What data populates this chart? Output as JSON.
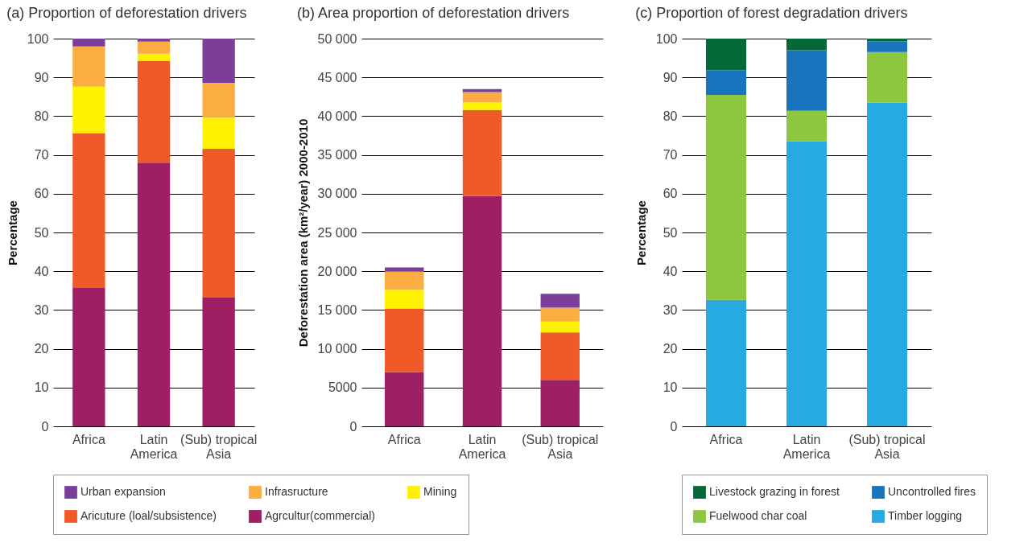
{
  "chart_data": [
    {
      "type": "bar",
      "stacked": true,
      "title": "(a) Proportion of deforestation drivers",
      "ylabel": "Percentage",
      "categories": [
        "Africa",
        "Latin\nAmerica",
        "(Sub) tropical\nAsia"
      ],
      "ylim": [
        0,
        100
      ],
      "yticks": [
        0,
        10,
        20,
        30,
        40,
        50,
        60,
        70,
        80,
        90,
        100
      ],
      "grid": "y",
      "legend": "bottom",
      "series": [
        {
          "name": "Agrcultur(commercial)",
          "color": "#9e1f63",
          "values": [
            35.7,
            68,
            33.2
          ]
        },
        {
          "name": "Aricuture (loal/subsistence)",
          "color": "#f05a28",
          "values": [
            39.9,
            26.2,
            38.4
          ]
        },
        {
          "name": "Mining",
          "color": "#fff200",
          "values": [
            12.0,
            1.9,
            8.0
          ]
        },
        {
          "name": "Infrasructure",
          "color": "#fbad41",
          "values": [
            10.4,
            3.1,
            9.0
          ]
        },
        {
          "name": "Urban expansion",
          "color": "#7b3f99",
          "values": [
            2.0,
            0.8,
            11.4
          ]
        }
      ]
    },
    {
      "type": "bar",
      "stacked": true,
      "title": "(b) Area proportion of deforestation drivers",
      "ylabel": "Deforestation area (km²/year) 2000-2010",
      "categories": [
        "Africa",
        "Latin\nAmerica",
        "(Sub) tropical\nAsia"
      ],
      "ylim": [
        0,
        50000
      ],
      "yticks": [
        0,
        {
          "value": 5000,
          "label": "5000"
        },
        {
          "value": 10000,
          "label": "10 000"
        },
        {
          "value": 15000,
          "label": "15 000"
        },
        {
          "value": 20000,
          "label": "20 000"
        },
        {
          "value": 25000,
          "label": "25 000"
        },
        {
          "value": 30000,
          "label": "30 000"
        },
        {
          "value": 35000,
          "label": "35 000"
        },
        {
          "value": 40000,
          "label": "40 000"
        },
        {
          "value": 45000,
          "label": "45 000"
        },
        {
          "value": 50000,
          "label": "50 000"
        }
      ],
      "grid": "y",
      "legend": "bottom",
      "series": [
        {
          "name": "Agrcultur(commercial)",
          "color": "#9e1f63",
          "values": [
            7000,
            29700,
            6000
          ]
        },
        {
          "name": "Aricuture (loal/subsistence)",
          "color": "#f05a28",
          "values": [
            8200,
            11100,
            6100
          ]
        },
        {
          "name": "Mining",
          "color": "#fff200",
          "values": [
            2400,
            1000,
            1400
          ]
        },
        {
          "name": "Infrasructure",
          "color": "#fbad41",
          "values": [
            2400,
            1300,
            1800
          ]
        },
        {
          "name": "Urban expansion",
          "color": "#7b3f99",
          "values": [
            500,
            400,
            1800
          ]
        }
      ]
    },
    {
      "type": "bar",
      "stacked": true,
      "title": "(c) Proportion of forest degradation drivers",
      "ylabel": "Percentage",
      "categories": [
        "Africa",
        "Latin\nAmerica",
        "(Sub) tropical\nAsia"
      ],
      "ylim": [
        0,
        100
      ],
      "yticks": [
        0,
        10,
        20,
        30,
        40,
        50,
        60,
        70,
        80,
        90,
        100
      ],
      "grid": "y",
      "legend": "bottom",
      "series": [
        {
          "name": "Timber logging",
          "color": "#27a9e1",
          "values": [
            32.6,
            73.5,
            83.5
          ]
        },
        {
          "name": "Fuelwood char    coal",
          "color": "#8dc63f",
          "values": [
            52.9,
            7.9,
            13.0
          ]
        },
        {
          "name": "Uncontrolled fires",
          "color": "#1874bc",
          "values": [
            6.3,
            15.6,
            2.8
          ]
        },
        {
          "name": "Livestock grazing in forest",
          "color": "#056839",
          "values": [
            8.2,
            3.0,
            0.7
          ]
        }
      ]
    }
  ]
}
